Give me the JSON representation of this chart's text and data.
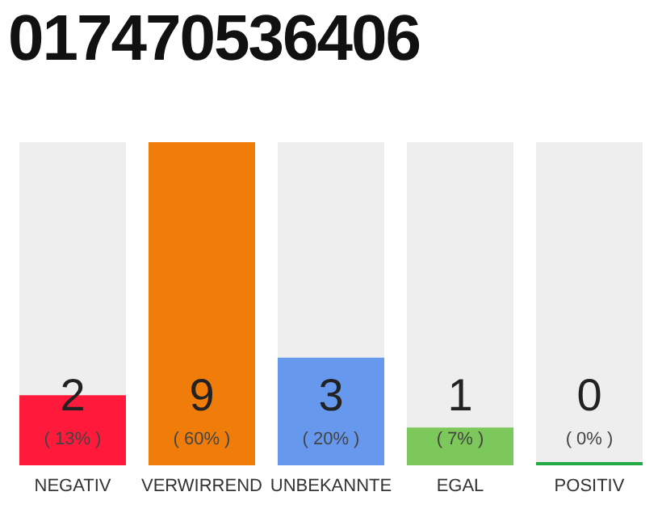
{
  "chart_data": {
    "type": "bar",
    "title": "017470536406",
    "categories": [
      "NEGATIV",
      "VERWIRREND",
      "UNBEKANNTE",
      "EGAL",
      "POSITIV"
    ],
    "values": [
      13,
      60,
      20,
      7,
      0
    ],
    "colors": [
      "#ff1a3c",
      "#f07d0a",
      "#6699ee",
      "#7cc85a",
      "#22aa44"
    ],
    "value_labels": [
      "2\n( 13% )",
      "9\n( 60% )",
      "3\n( 20% )",
      "1\n( 7% )",
      "0\n( 0% )"
    ]
  }
}
